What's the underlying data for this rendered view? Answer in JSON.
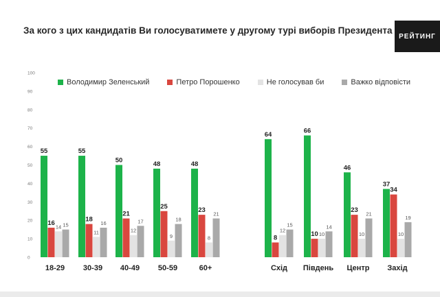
{
  "title": "За кого з цих кандидатів Ви голосуватимете у другому турі виборів Президента України?",
  "logo_text": "РЕЙТИНГ",
  "chart_data": {
    "type": "bar",
    "title": "За кого з цих кандидатів Ви голосуватимете у другому турі виборів Президента України?",
    "xlabel": "",
    "ylabel": "",
    "ylim": [
      0,
      100
    ],
    "yticks": [
      0,
      10,
      20,
      30,
      40,
      50,
      60,
      70,
      80,
      90,
      100
    ],
    "legend_position": "top",
    "categories": [
      "18-29",
      "30-39",
      "40-49",
      "50-59",
      "60+",
      "Схід",
      "Південь",
      "Центр",
      "Захід"
    ],
    "series": [
      {
        "name": "Володимир Зеленський",
        "color": "#1db34a",
        "values": [
          55,
          55,
          50,
          48,
          48,
          64,
          66,
          46,
          37
        ]
      },
      {
        "name": "Петро Порошенко",
        "color": "#d9473f",
        "values": [
          16,
          18,
          21,
          25,
          23,
          8,
          10,
          23,
          34
        ]
      },
      {
        "name": "Не голосував би",
        "color": "#e3e3e3",
        "values": [
          14,
          11,
          12,
          9,
          8,
          12,
          10,
          10,
          10
        ]
      },
      {
        "name": "Важко відповісти",
        "color": "#a9a9a9",
        "values": [
          15,
          16,
          17,
          18,
          21,
          15,
          14,
          21,
          19
        ]
      }
    ]
  }
}
